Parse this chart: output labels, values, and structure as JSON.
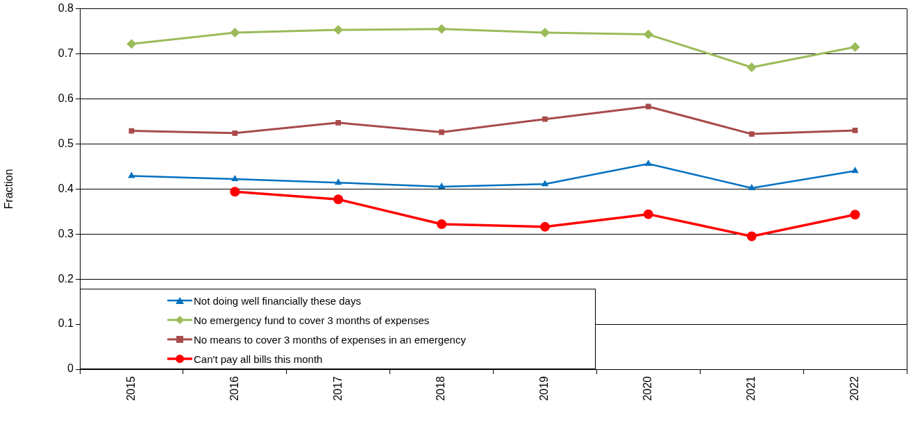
{
  "chart_data": {
    "type": "line",
    "ylabel": "Fraction",
    "categories": [
      "2015",
      "2016",
      "2017",
      "2018",
      "2019",
      "2020",
      "2021",
      "2022"
    ],
    "ylim": [
      0,
      0.8
    ],
    "yticks": [
      0,
      0.1,
      0.2,
      0.3,
      0.4,
      0.5,
      0.6,
      0.7,
      0.8
    ],
    "grid": "y",
    "legend": "bottom left",
    "series": [
      {
        "name": "Not doing well financially these days",
        "color": "#0070c0",
        "marker": "triangle",
        "values": [
          0.429,
          0.422,
          0.414,
          0.405,
          0.411,
          0.456,
          0.402,
          0.44
        ]
      },
      {
        "name": "No emergency fund to cover 3 months of expenses",
        "color": "#9bbb59",
        "marker": "diamond",
        "values": [
          0.722,
          0.747,
          0.753,
          0.755,
          0.747,
          0.743,
          0.67,
          0.715
        ]
      },
      {
        "name": "No means to cover 3 months of expenses in an emergency",
        "color": "#a84a4a",
        "marker": "square",
        "values": [
          0.529,
          0.524,
          0.547,
          0.526,
          0.555,
          0.583,
          0.522,
          0.53
        ]
      },
      {
        "name": "Can't pay all bills this month",
        "color": "#ff0000",
        "marker": "circle",
        "values": [
          null,
          0.394,
          0.377,
          0.322,
          0.316,
          0.344,
          0.295,
          0.343
        ]
      }
    ]
  }
}
